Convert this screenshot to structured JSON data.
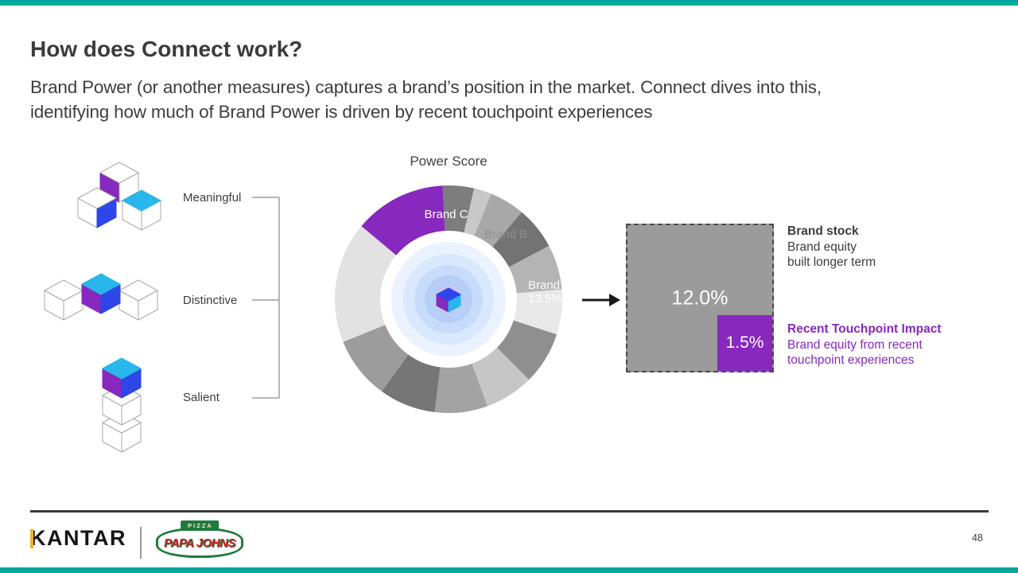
{
  "colors": {
    "accent_teal": "#00A79D",
    "purple": "#8728BE",
    "cyan": "#29B6EA",
    "blue": "#2E45E8",
    "gray_square": "#9B9B9B",
    "text_dark": "#3D3D3D",
    "kantar_gold": "#F0B323",
    "papa_red": "#CE2029",
    "papa_green": "#1F7A3D"
  },
  "header": {
    "title": "How does Connect work?",
    "body_line1": "Brand Power (or another measures) captures a brand’s position in the market. Connect dives into this,",
    "body_line2": "identifying how much of Brand Power is driven by recent touchpoint experiences"
  },
  "framework": {
    "labels": [
      "Meaningful",
      "Distinctive",
      "Salient"
    ]
  },
  "chart_data": {
    "type": "pie",
    "subtype": "donut",
    "title": "Power Score",
    "legend_position": "none",
    "segments": [
      {
        "start_deg": -3,
        "end_deg": 13,
        "color": "#7D7D7D"
      },
      {
        "start_deg": 13,
        "end_deg": 22,
        "color": "#C8C8C8"
      },
      {
        "start_deg": 22,
        "end_deg": 40,
        "color": "#A8A8A8",
        "label": "Brand B"
      },
      {
        "start_deg": 40,
        "end_deg": 62,
        "color": "#737373"
      },
      {
        "start_deg": 62,
        "end_deg": 85,
        "color": "#B4B4B4"
      },
      {
        "start_deg": 85,
        "end_deg": 108,
        "color": "#E8E8E8",
        "label": "Brand A",
        "value": "13.5%"
      },
      {
        "start_deg": 108,
        "end_deg": 135,
        "color": "#8F8F8F"
      },
      {
        "start_deg": 135,
        "end_deg": 160,
        "color": "#C6C6C6"
      },
      {
        "start_deg": 160,
        "end_deg": 187,
        "color": "#A3A3A3"
      },
      {
        "start_deg": 187,
        "end_deg": 216,
        "color": "#767676"
      },
      {
        "start_deg": 216,
        "end_deg": 248,
        "color": "#9C9C9C"
      },
      {
        "start_deg": 248,
        "end_deg": 310,
        "color": "#E2E2E2"
      },
      {
        "start_deg": 310,
        "end_deg": 357,
        "color": "#8728BE",
        "label": "Brand C"
      }
    ],
    "labels": {
      "brand_c": "Brand C",
      "brand_b": "Brand B",
      "brand_a_name": "Brand A",
      "brand_a_value": "13.5%"
    }
  },
  "impact": {
    "brand_stock": {
      "value": "12.0%",
      "title": "Brand stock",
      "desc_line1": "Brand equity",
      "desc_line2": "built longer term"
    },
    "touchpoint": {
      "value": "1.5%",
      "title": "Recent Touchpoint Impact",
      "desc_line1": "Brand equity from recent",
      "desc_line2": "touchpoint experiences"
    }
  },
  "footer": {
    "kantar_logo": "KANTAR",
    "papa_ribbon": "PIZZA",
    "papa_name": "PAPA JOHNS",
    "page_number": "48"
  }
}
